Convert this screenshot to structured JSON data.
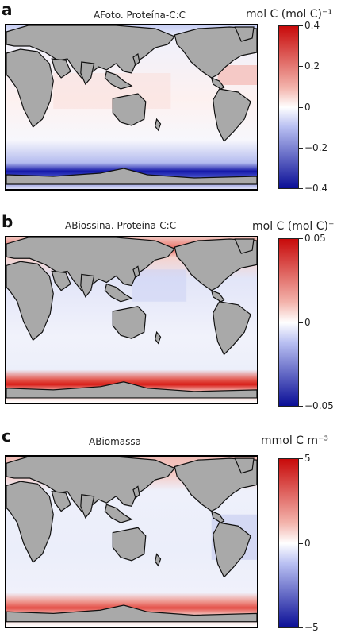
{
  "panels": [
    {
      "letter": "a",
      "title": "AFoto. Proteína-C:C",
      "unit": "mol C (mol C)⁻¹",
      "ticks": [
        "0.4",
        "0.2",
        "0",
        "−0.2",
        "−0.4"
      ]
    },
    {
      "letter": "b",
      "title": "ABiossina. Proteína-C:C",
      "unit": "mol C (mol C)⁻",
      "ticks": [
        "0.05",
        "0",
        "−0.05"
      ]
    },
    {
      "letter": "c",
      "title": "ABiomassa",
      "unit": "mmol C m⁻³",
      "ticks": [
        "5",
        "0",
        "−5"
      ]
    }
  ],
  "colors": {
    "positive": "#c80a0a",
    "neutral": "#ffffff",
    "negative": "#0a0e96",
    "land": "#a9a9a9"
  }
}
